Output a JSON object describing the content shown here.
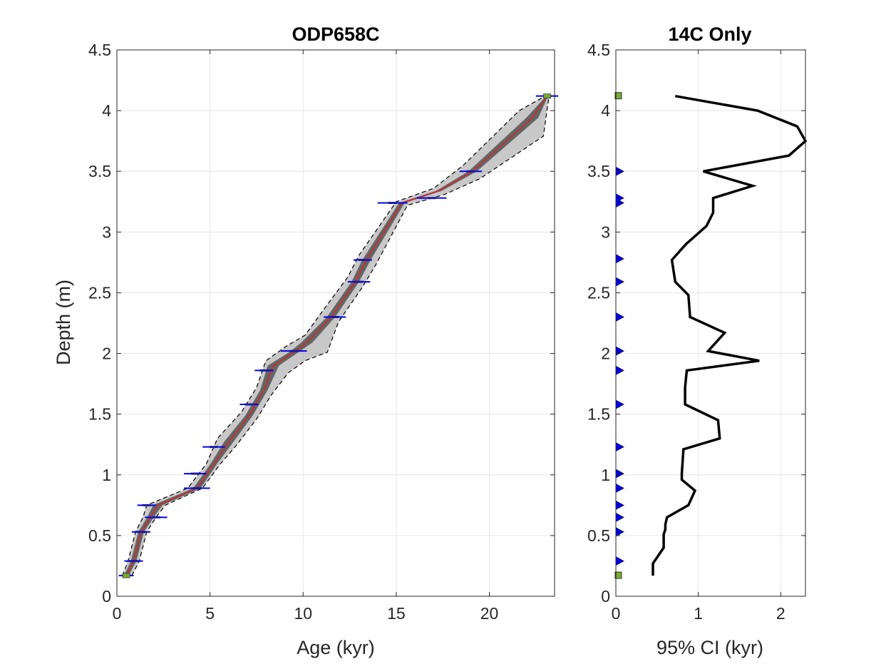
{
  "chart_data": [
    {
      "type": "line",
      "title": "ODP658C",
      "xlabel": "Age (kyr)",
      "ylabel": "Depth (m)",
      "xlim": [
        0,
        23.5
      ],
      "ylim": [
        0,
        4.5
      ],
      "xticks": [
        0,
        5,
        10,
        15,
        20
      ],
      "yticks": [
        0,
        0.5,
        1,
        1.5,
        2,
        2.5,
        3,
        3.5,
        4,
        4.5
      ],
      "xtick_labels": [
        "0",
        "5",
        "10",
        "15",
        "20"
      ],
      "ytick_labels": [
        "0",
        "0.5",
        "1",
        "1.5",
        "2",
        "2.5",
        "3",
        "3.5",
        "4",
        "4.5"
      ],
      "grid": true,
      "series": [
        {
          "style": "median",
          "color": "#d62728",
          "x": [
            0.5,
            0.9,
            1.3,
            1.8,
            2.2,
            4.3,
            5.2,
            6.0,
            7.1,
            7.9,
            8.4,
            9.5,
            10.2,
            11.5,
            12.8,
            13.4,
            15.3,
            17.3,
            19.1,
            22.3,
            23.1
          ],
          "y": [
            0.17,
            0.29,
            0.53,
            0.65,
            0.75,
            0.89,
            1.09,
            1.27,
            1.49,
            1.7,
            1.9,
            2.01,
            2.09,
            2.3,
            2.59,
            2.77,
            3.24,
            3.34,
            3.5,
            3.94,
            4.12
          ]
        },
        {
          "style": "ci-lower",
          "color": "#000000",
          "x": [
            0.3,
            0.6,
            1.0,
            1.4,
            1.6,
            3.8,
            4.8,
            5.4,
            6.7,
            7.5,
            8.0,
            9.1,
            10.1,
            11.0,
            12.4,
            13.0,
            15.0,
            17.0,
            18.6,
            21.6,
            23.0
          ],
          "y": [
            0.17,
            0.29,
            0.53,
            0.65,
            0.75,
            0.89,
            1.09,
            1.3,
            1.52,
            1.72,
            1.94,
            2.06,
            2.15,
            2.34,
            2.63,
            2.81,
            3.25,
            3.36,
            3.55,
            4.0,
            4.12
          ]
        },
        {
          "style": "ci-upper",
          "color": "#000000",
          "x": [
            0.8,
            1.2,
            1.6,
            2.1,
            2.6,
            4.6,
            5.5,
            6.4,
            7.5,
            8.3,
            9.2,
            10.1,
            11.3,
            11.9,
            13.2,
            13.9,
            15.6,
            17.6,
            19.5,
            22.9,
            23.2
          ],
          "y": [
            0.17,
            0.29,
            0.53,
            0.65,
            0.75,
            0.89,
            1.08,
            1.24,
            1.46,
            1.66,
            1.84,
            1.94,
            2.01,
            2.26,
            2.55,
            2.73,
            3.22,
            3.31,
            3.44,
            3.79,
            4.12
          ]
        }
      ],
      "dates": [
        {
          "age": 0.5,
          "depth": 0.17,
          "err": 0.4,
          "kind": "surface"
        },
        {
          "age": 0.9,
          "depth": 0.29,
          "err": 0.5
        },
        {
          "age": 1.3,
          "depth": 0.53,
          "err": 0.5
        },
        {
          "age": 2.1,
          "depth": 0.65,
          "err": 0.6
        },
        {
          "age": 1.6,
          "depth": 0.75,
          "err": 0.5
        },
        {
          "age": 4.3,
          "depth": 0.89,
          "err": 0.7
        },
        {
          "age": 4.2,
          "depth": 1.01,
          "err": 0.6
        },
        {
          "age": 5.2,
          "depth": 1.23,
          "err": 0.6
        },
        {
          "age": 7.1,
          "depth": 1.58,
          "err": 0.5
        },
        {
          "age": 7.9,
          "depth": 1.86,
          "err": 0.5
        },
        {
          "age": 9.5,
          "depth": 2.02,
          "err": 0.7
        },
        {
          "age": 11.7,
          "depth": 2.3,
          "err": 0.6
        },
        {
          "age": 13.0,
          "depth": 2.59,
          "err": 0.6
        },
        {
          "age": 13.2,
          "depth": 2.77,
          "err": 0.5
        },
        {
          "age": 14.8,
          "depth": 3.24,
          "err": 0.8
        },
        {
          "age": 16.9,
          "depth": 3.28,
          "err": 0.8
        },
        {
          "age": 19.0,
          "depth": 3.5,
          "err": 0.6
        },
        {
          "age": 23.1,
          "depth": 4.12,
          "err": 0.6,
          "kind": "surface"
        }
      ]
    },
    {
      "type": "line",
      "title": "14C Only",
      "xlabel": "95% CI (kyr)",
      "ylabel": "",
      "xlim": [
        0,
        2.3
      ],
      "ylim": [
        0,
        4.5
      ],
      "xticks": [
        0,
        1,
        2
      ],
      "yticks": [
        0,
        0.5,
        1,
        1.5,
        2,
        2.5,
        3,
        3.5,
        4,
        4.5
      ],
      "xtick_labels": [
        "0",
        "1",
        "2"
      ],
      "ytick_labels": [
        "0",
        "0.5",
        "1",
        "1.5",
        "2",
        "2.5",
        "3",
        "3.5",
        "4",
        "4.5"
      ],
      "grid": true,
      "series": [
        {
          "style": "ci-width",
          "color": "#000000",
          "x": [
            0.45,
            0.45,
            0.58,
            0.58,
            0.6,
            0.6,
            0.62,
            0.88,
            0.96,
            0.8,
            0.8,
            0.82,
            1.26,
            1.24,
            0.84,
            0.84,
            0.86,
            1.74,
            1.12,
            1.32,
            0.9,
            0.88,
            0.72,
            0.68,
            0.85,
            1.1,
            1.18,
            1.18,
            1.66,
            1.06,
            2.1,
            2.3,
            2.2,
            1.72,
            0.72
          ],
          "y": [
            0.17,
            0.27,
            0.4,
            0.51,
            0.55,
            0.59,
            0.65,
            0.75,
            0.87,
            0.96,
            1.01,
            1.21,
            1.3,
            1.45,
            1.58,
            1.72,
            1.86,
            1.94,
            2.02,
            2.17,
            2.3,
            2.48,
            2.59,
            2.77,
            2.9,
            3.05,
            3.16,
            3.28,
            3.38,
            3.5,
            3.63,
            3.75,
            3.87,
            4.0,
            4.12
          ]
        }
      ],
      "markers": [
        {
          "depth": 0.17,
          "kind": "surface"
        },
        {
          "depth": 0.29,
          "kind": "14C"
        },
        {
          "depth": 0.53,
          "kind": "14C"
        },
        {
          "depth": 0.65,
          "kind": "14C"
        },
        {
          "depth": 0.75,
          "kind": "14C"
        },
        {
          "depth": 0.89,
          "kind": "14C"
        },
        {
          "depth": 1.01,
          "kind": "14C"
        },
        {
          "depth": 1.23,
          "kind": "14C"
        },
        {
          "depth": 1.58,
          "kind": "14C"
        },
        {
          "depth": 1.86,
          "kind": "14C"
        },
        {
          "depth": 2.02,
          "kind": "14C"
        },
        {
          "depth": 2.3,
          "kind": "14C"
        },
        {
          "depth": 2.59,
          "kind": "14C"
        },
        {
          "depth": 2.78,
          "kind": "14C"
        },
        {
          "depth": 3.24,
          "kind": "14C"
        },
        {
          "depth": 3.28,
          "kind": "14C"
        },
        {
          "depth": 3.5,
          "kind": "14C"
        },
        {
          "depth": 4.12,
          "kind": "surface"
        }
      ]
    }
  ]
}
